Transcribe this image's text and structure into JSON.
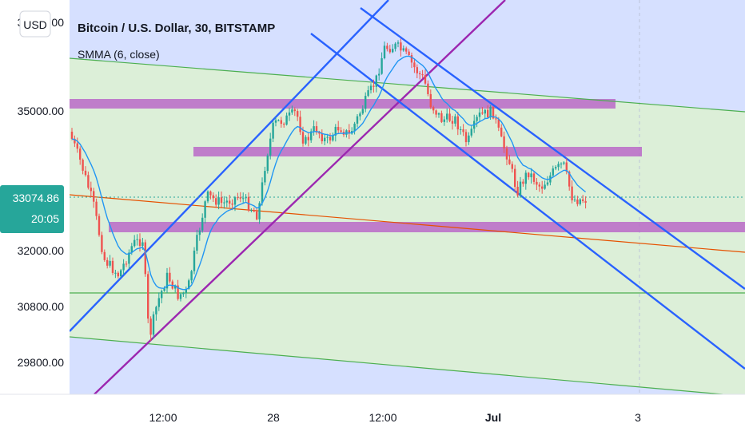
{
  "header": {
    "title": "Bitcoin / U.S. Dollar, 30, BITSTAMP",
    "indicator": "SMMA (6, close)",
    "currency_button": "USD"
  },
  "price_badge": {
    "price": "33074.86",
    "countdown": "20:05",
    "color": "#26a69a"
  },
  "colors": {
    "up": "#26a69a",
    "down": "#ef5350",
    "smma": "#2196f3",
    "channel": "#2962ff",
    "trendline": "#9c27b0",
    "zone": "#ba68c8",
    "bg_blue": "#d6e0ff",
    "bg_green": "#dcefd8"
  },
  "chart_data": {
    "type": "candlestick",
    "symbol": "Bitcoin / U.S. Dollar",
    "interval": "30",
    "exchange": "BITSTAMP",
    "y_ticks": [
      "35000.00",
      "32000.00",
      "30800.00",
      "29800.00"
    ],
    "x_ticks": [
      "12:00",
      "28",
      "12:00",
      "Jul",
      "3"
    ],
    "ylim": [
      29100,
      37100
    ],
    "current_price": 33074.86,
    "series": [
      {
        "name": "SMMA (6, close)",
        "type": "line"
      }
    ],
    "resistance_zones": [
      {
        "from": 34980,
        "to": 35150
      },
      {
        "from": 33960,
        "to": 34130
      },
      {
        "from": 32420,
        "to": 32620
      }
    ]
  }
}
